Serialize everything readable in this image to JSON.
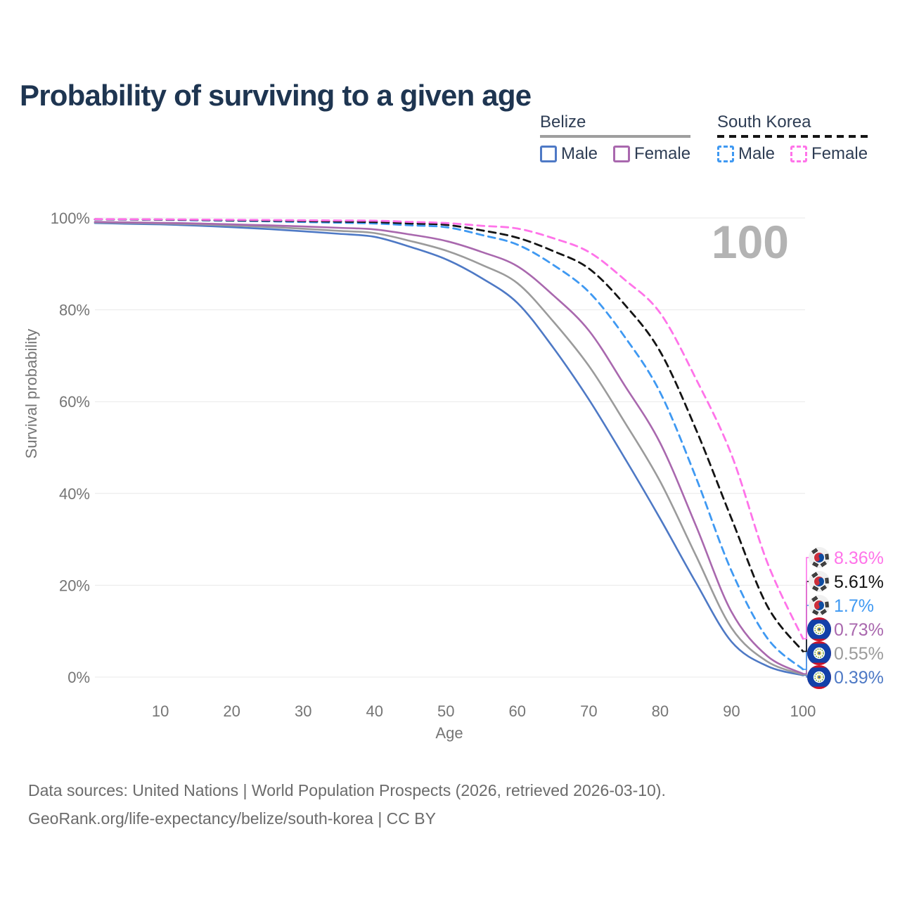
{
  "title": "Probability of surviving to a given age",
  "watermark": "100",
  "legend": {
    "groups": [
      {
        "name": "Belize",
        "style": "solid",
        "items": [
          {
            "label": "Male",
            "color": "#4e79c5"
          },
          {
            "label": "Female",
            "color": "#a968ae"
          }
        ]
      },
      {
        "name": "South Korea",
        "style": "dashed",
        "items": [
          {
            "label": "Male",
            "color": "#3f99f2"
          },
          {
            "label": "Female",
            "color": "#ff73e9"
          }
        ]
      }
    ]
  },
  "chart_data": {
    "type": "line",
    "title": "Probability of surviving to a given age",
    "xlabel": "Age",
    "ylabel": "Survival probability",
    "xlim": [
      0,
      100
    ],
    "ylim": [
      0,
      100
    ],
    "grid": "horizontal",
    "x_ticks": [
      10,
      20,
      30,
      40,
      50,
      60,
      70,
      80,
      90,
      100
    ],
    "y_ticks": [
      {
        "value": 0,
        "label": "0%"
      },
      {
        "value": 20,
        "label": "20%"
      },
      {
        "value": 40,
        "label": "40%"
      },
      {
        "value": 60,
        "label": "60%"
      },
      {
        "value": 80,
        "label": "80%"
      },
      {
        "value": 100,
        "label": "100%"
      }
    ],
    "x": [
      0,
      5,
      10,
      15,
      20,
      25,
      30,
      35,
      40,
      45,
      50,
      55,
      60,
      65,
      70,
      75,
      80,
      85,
      90,
      95,
      100
    ],
    "series": [
      {
        "name": "Belize Male",
        "slug": "belize-male",
        "country": "Belize",
        "sex": "Male",
        "color": "#4e79c5",
        "dash": false,
        "flag": "bz",
        "end_label": "0.39%",
        "values": [
          98.9,
          98.75,
          98.6,
          98.35,
          98.0,
          97.6,
          97.1,
          96.55,
          95.9,
          93.7,
          91.0,
          86.9,
          81.5,
          71.8,
          60.5,
          47.8,
          34.5,
          20.6,
          7.7,
          2.4,
          0.39
        ]
      },
      {
        "name": "Belize Both sexes",
        "slug": "belize-total",
        "country": "Belize",
        "sex": "Both",
        "color": "#9b9b9b",
        "dash": false,
        "flag": "bz",
        "end_label": "0.55%",
        "values": [
          99.05,
          98.95,
          98.8,
          98.6,
          98.35,
          98.05,
          97.65,
          97.2,
          96.7,
          95.0,
          92.9,
          89.8,
          85.8,
          77.5,
          67.8,
          55.6,
          42.6,
          26.5,
          10.7,
          3.4,
          0.55
        ]
      },
      {
        "name": "Belize Female",
        "slug": "belize-female",
        "country": "Belize",
        "sex": "Female",
        "color": "#a968ae",
        "dash": false,
        "flag": "bz",
        "end_label": "0.73%",
        "values": [
          99.15,
          99.05,
          98.95,
          98.8,
          98.6,
          98.4,
          98.15,
          97.85,
          97.5,
          96.4,
          95.0,
          92.6,
          89.5,
          83.2,
          75.5,
          63.6,
          51.0,
          33.0,
          14.2,
          4.6,
          0.73
        ]
      },
      {
        "name": "South Korea Male",
        "slug": "south-korea-male",
        "country": "South Korea",
        "sex": "Male",
        "color": "#3f99f2",
        "dash": true,
        "flag": "kr",
        "end_label": "1.7%",
        "values": [
          99.7,
          99.65,
          99.6,
          99.5,
          99.4,
          99.28,
          99.12,
          98.97,
          98.8,
          98.4,
          98.0,
          96.3,
          94.2,
          89.8,
          83.9,
          74.2,
          62.0,
          43.5,
          23.1,
          8.5,
          1.7
        ]
      },
      {
        "name": "South Korea Both sexes",
        "slug": "south-korea-total",
        "country": "South Korea",
        "sex": "Both",
        "color": "#141414",
        "dash": true,
        "flag": "kr",
        "end_label": "5.61%",
        "values": [
          99.72,
          99.68,
          99.64,
          99.58,
          99.5,
          99.42,
          99.32,
          99.22,
          99.1,
          98.8,
          98.5,
          97.3,
          95.7,
          92.8,
          89.0,
          81.2,
          70.9,
          54.0,
          34.5,
          15.5,
          5.61
        ]
      },
      {
        "name": "South Korea Female",
        "slug": "south-korea-female",
        "country": "South Korea",
        "sex": "Female",
        "color": "#ff73e9",
        "dash": true,
        "flag": "kr",
        "end_label": "8.36%",
        "values": [
          99.75,
          99.72,
          99.69,
          99.65,
          99.6,
          99.55,
          99.5,
          99.45,
          99.4,
          99.15,
          98.9,
          98.3,
          97.7,
          95.6,
          92.6,
          86.6,
          79.3,
          65.0,
          48.4,
          25.0,
          8.36
        ]
      }
    ]
  },
  "footer": {
    "line1": "Data sources: United Nations | World Population Prospects (2026, retrieved 2026-03-10).",
    "line2": "GeoRank.org/life-expectancy/belize/south-korea | CC BY"
  }
}
